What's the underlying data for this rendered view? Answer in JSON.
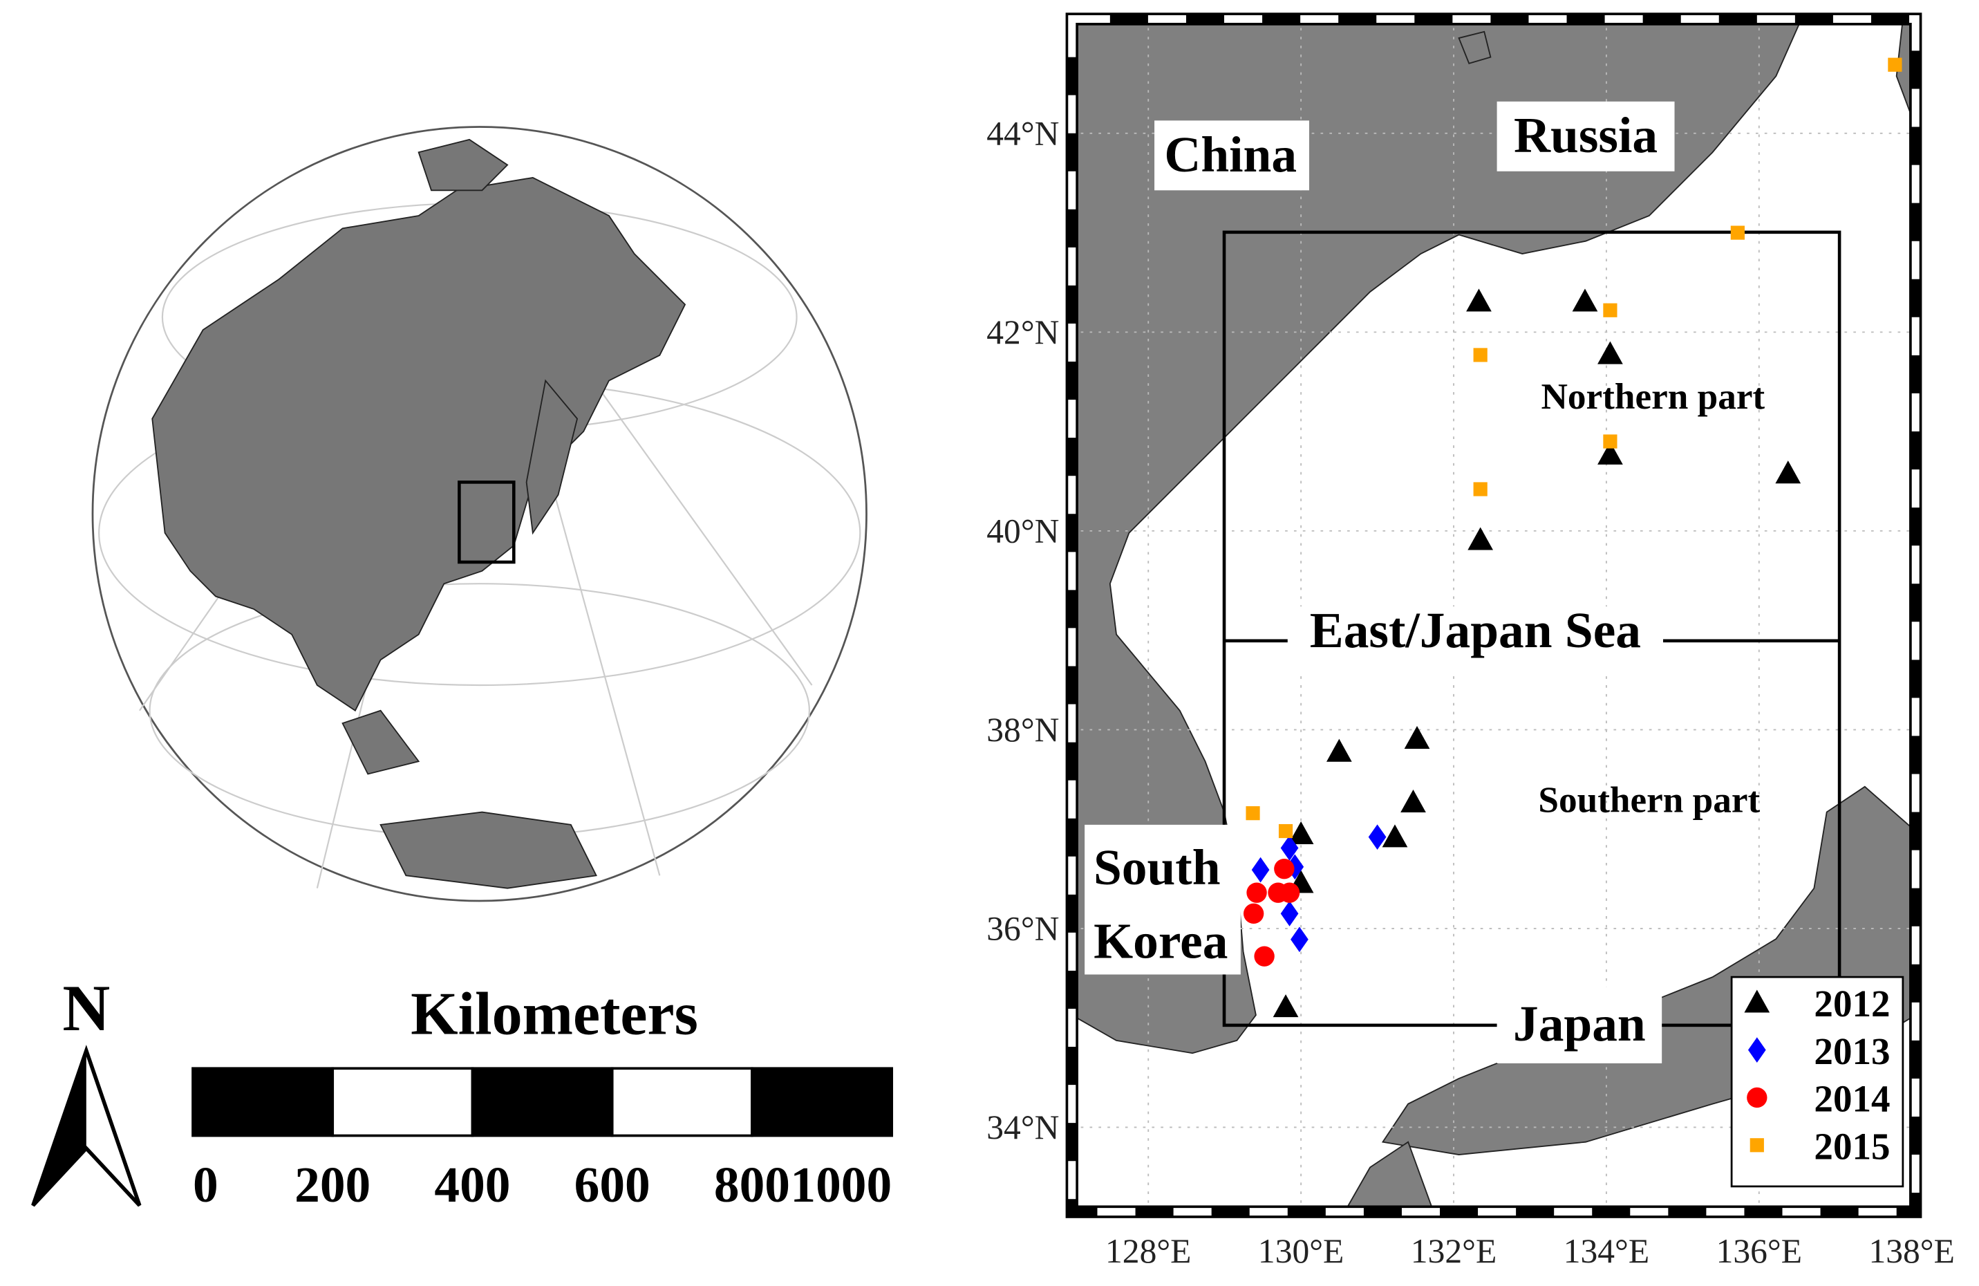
{
  "scale_bar": {
    "north": "N",
    "title": "Kilometers",
    "ticks": [
      0,
      200,
      400,
      600,
      800,
      1000
    ]
  },
  "chart_data": {
    "type": "scatter",
    "xlim": [
      127,
      138.05
    ],
    "ylim": [
      33.15,
      45.15
    ],
    "xticks": [
      {
        "value": 128,
        "label": "128°E"
      },
      {
        "value": 130,
        "label": "130°E"
      },
      {
        "value": 132,
        "label": "132°E"
      },
      {
        "value": 134,
        "label": "134°E"
      },
      {
        "value": 136,
        "label": "136°E"
      },
      {
        "value": 138,
        "label": "138°E"
      }
    ],
    "yticks": [
      {
        "value": 34,
        "label": "34°N"
      },
      {
        "value": 36,
        "label": "36°N"
      },
      {
        "value": 38,
        "label": "38°N"
      },
      {
        "value": 40,
        "label": "40°N"
      },
      {
        "value": 42,
        "label": "42°N"
      },
      {
        "value": 44,
        "label": "44°N"
      }
    ],
    "grid": true,
    "legend": "lower right",
    "annotations": [
      "China",
      "Russia",
      "East/Japan Sea",
      "Northern part",
      "Southern part",
      "South",
      "Korea",
      "Japan"
    ],
    "series": [
      {
        "name": "2012",
        "color": "#000000",
        "marker": "triangle",
        "x": [
          132.33,
          133.72,
          134.05,
          134.05,
          136.38,
          132.35,
          130.5,
          131.52,
          131.47,
          131.23,
          130.0,
          130.0,
          129.8
        ],
        "values": [
          42.31,
          42.31,
          41.78,
          40.77,
          40.58,
          39.91,
          37.78,
          37.91,
          37.27,
          36.92,
          36.95,
          36.46,
          35.21
        ]
      },
      {
        "name": "2013",
        "color": "#0000ff",
        "marker": "diamond",
        "x": [
          129.47,
          129.85,
          129.92,
          129.85,
          129.98,
          131.0
        ],
        "values": [
          36.59,
          36.81,
          36.62,
          36.15,
          35.89,
          36.92
        ]
      },
      {
        "name": "2014",
        "color": "#ff0000",
        "marker": "circle",
        "x": [
          129.78,
          129.42,
          129.7,
          129.85,
          129.38,
          129.52
        ],
        "values": [
          36.6,
          36.36,
          36.36,
          36.36,
          36.15,
          35.72
        ]
      },
      {
        "name": "2015",
        "color": "#ffa500",
        "marker": "square",
        "x": [
          137.78,
          135.72,
          134.05,
          132.35,
          134.05,
          132.35,
          129.37,
          129.8
        ],
        "values": [
          44.69,
          43.0,
          42.22,
          41.77,
          40.9,
          40.42,
          37.16,
          36.98
        ]
      }
    ]
  }
}
